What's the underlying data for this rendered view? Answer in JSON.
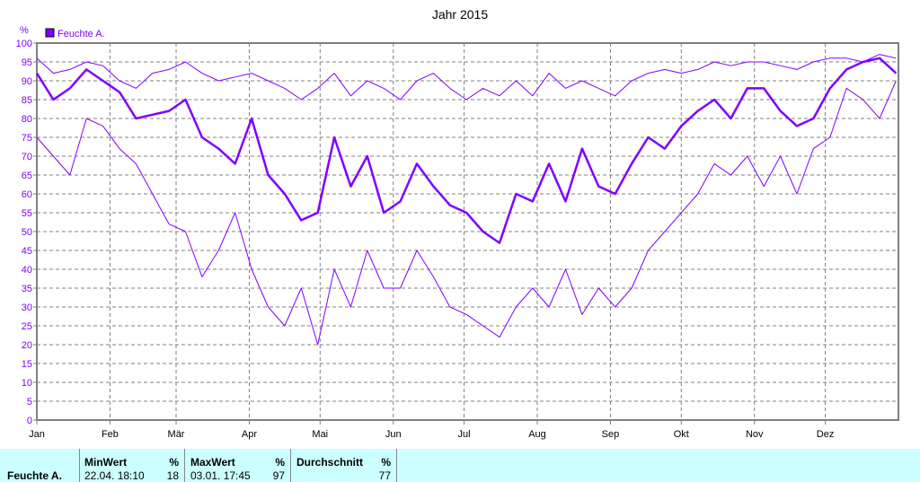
{
  "chart_data": {
    "type": "line",
    "title": "Jahr 2015",
    "ylabel": "%",
    "ylim": [
      0,
      100
    ],
    "yticks": [
      0,
      5,
      10,
      15,
      20,
      25,
      30,
      35,
      40,
      45,
      50,
      55,
      60,
      65,
      70,
      75,
      80,
      85,
      90,
      95,
      100
    ],
    "xlim": [
      "2015-01-01",
      "2016-01-01"
    ],
    "xticks": [
      {
        "date": "2015-01-01",
        "label": "Jan"
      },
      {
        "date": "2015-02-01",
        "label": "Feb"
      },
      {
        "date": "2015-03-01",
        "label": "Mär"
      },
      {
        "date": "2015-04-01",
        "label": "Apr"
      },
      {
        "date": "2015-05-01",
        "label": "Mai"
      },
      {
        "date": "2015-06-01",
        "label": "Jun"
      },
      {
        "date": "2015-07-01",
        "label": "Jul"
      },
      {
        "date": "2015-08-01",
        "label": "Aug"
      },
      {
        "date": "2015-09-01",
        "label": "Sep"
      },
      {
        "date": "2015-10-01",
        "label": "Okt"
      },
      {
        "date": "2015-11-01",
        "label": "Nov"
      },
      {
        "date": "2015-12-01",
        "label": "Dez"
      }
    ],
    "grid": true,
    "legend": {
      "label": "Feuchte A.",
      "position": "top-left",
      "color": "#8000ff"
    },
    "color": "#8000ff",
    "x": [
      "2015-01-01",
      "2015-01-08",
      "2015-01-15",
      "2015-01-22",
      "2015-01-29",
      "2015-02-05",
      "2015-02-12",
      "2015-02-19",
      "2015-02-26",
      "2015-03-05",
      "2015-03-12",
      "2015-03-19",
      "2015-03-26",
      "2015-04-02",
      "2015-04-09",
      "2015-04-16",
      "2015-04-23",
      "2015-04-30",
      "2015-05-07",
      "2015-05-14",
      "2015-05-21",
      "2015-05-28",
      "2015-06-04",
      "2015-06-11",
      "2015-06-18",
      "2015-06-25",
      "2015-07-02",
      "2015-07-09",
      "2015-07-16",
      "2015-07-23",
      "2015-07-30",
      "2015-08-06",
      "2015-08-13",
      "2015-08-20",
      "2015-08-27",
      "2015-09-03",
      "2015-09-10",
      "2015-09-17",
      "2015-09-24",
      "2015-10-01",
      "2015-10-08",
      "2015-10-15",
      "2015-10-22",
      "2015-10-29",
      "2015-11-05",
      "2015-11-12",
      "2015-11-19",
      "2015-11-26",
      "2015-12-03",
      "2015-12-10",
      "2015-12-17",
      "2015-12-24",
      "2015-12-31"
    ],
    "series": [
      {
        "kind": "max",
        "values": [
          96,
          92,
          93,
          95,
          94,
          90,
          88,
          92,
          93,
          95,
          92,
          90,
          91,
          92,
          90,
          88,
          85,
          88,
          92,
          86,
          90,
          88,
          85,
          90,
          92,
          88,
          85,
          88,
          86,
          90,
          86,
          92,
          88,
          90,
          88,
          86,
          90,
          92,
          93,
          92,
          93,
          95,
          94,
          95,
          95,
          94,
          93,
          95,
          96,
          96,
          95,
          97,
          96
        ]
      },
      {
        "kind": "avg",
        "values": [
          92,
          85,
          88,
          93,
          90,
          87,
          80,
          81,
          82,
          85,
          75,
          72,
          68,
          80,
          65,
          60,
          53,
          55,
          75,
          62,
          70,
          55,
          58,
          68,
          62,
          57,
          55,
          50,
          47,
          60,
          58,
          68,
          58,
          72,
          62,
          60,
          68,
          75,
          72,
          78,
          82,
          85,
          80,
          88,
          88,
          82,
          78,
          80,
          88,
          93,
          95,
          96,
          92
        ]
      },
      {
        "kind": "min",
        "values": [
          75,
          70,
          65,
          80,
          78,
          72,
          68,
          60,
          52,
          50,
          38,
          45,
          55,
          40,
          30,
          25,
          35,
          20,
          40,
          30,
          45,
          35,
          35,
          45,
          38,
          30,
          28,
          25,
          22,
          30,
          35,
          30,
          40,
          28,
          35,
          30,
          35,
          45,
          50,
          55,
          60,
          68,
          65,
          70,
          62,
          70,
          60,
          72,
          75,
          88,
          85,
          80,
          90
        ]
      }
    ]
  },
  "table": {
    "row_label": "Feuchte A.",
    "min": {
      "header": "MinWert",
      "unit": "%",
      "time": "22.04.  18:10",
      "value": "18"
    },
    "max": {
      "header": "MaxWert",
      "unit": "%",
      "time": "03.01.  17:45",
      "value": "97"
    },
    "avg": {
      "header": "Durchschnitt",
      "unit": "%",
      "value": "77"
    }
  }
}
